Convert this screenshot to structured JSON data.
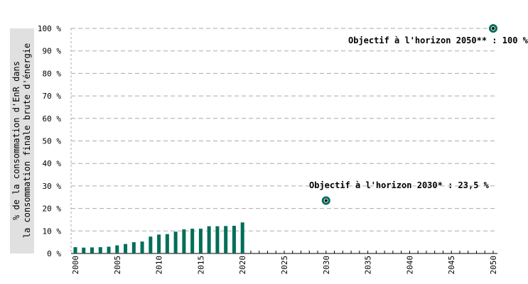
{
  "chart_data": {
    "type": "bar",
    "ylabel": [
      "% de la consommation d'EnR dans",
      "la consommation finale brute d'énergie"
    ],
    "ylim": [
      0,
      100
    ],
    "y_ticks": [
      "0 %",
      "10 %",
      "20 %",
      "30 %",
      "40 %",
      "50 %",
      "60 %",
      "70 %",
      "80 %",
      "90 %",
      "100 %"
    ],
    "x_range": [
      2000,
      2050
    ],
    "x_ticks": [
      "2000",
      "2005",
      "2010",
      "2015",
      "2020",
      "2025",
      "2030",
      "2035",
      "2040",
      "2045",
      "2050"
    ],
    "grid": "horizontal dashed",
    "bar_color": "#006e5a",
    "series": [
      {
        "x": [
          2000,
          2001,
          2002,
          2003,
          2004,
          2005,
          2006,
          2007,
          2008,
          2009,
          2010,
          2011,
          2012,
          2013,
          2014,
          2015,
          2016,
          2017,
          2018,
          2019,
          2020
        ],
        "values": [
          2.8,
          2.6,
          2.7,
          2.8,
          3.0,
          3.6,
          4.2,
          5.0,
          5.3,
          7.5,
          8.4,
          8.6,
          9.7,
          10.7,
          11.0,
          11.0,
          12.1,
          12.1,
          12.2,
          12.3,
          13.8
        ]
      }
    ],
    "targets": [
      {
        "x": 2030,
        "value": 23.5,
        "label": "Objectif à l'horizon 2030* : 23,5 %"
      },
      {
        "x": 2050,
        "value": 100,
        "label": "Objectif à l'horizon 2050** : 100 %"
      }
    ],
    "marker_color": "#006e5a"
  }
}
